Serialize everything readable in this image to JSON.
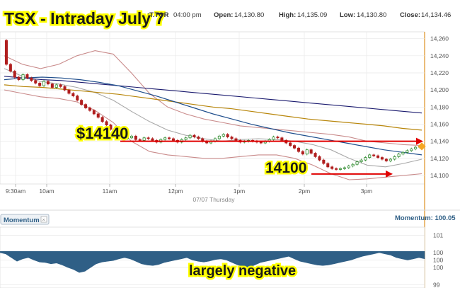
{
  "header": {
    "title": "TSX - Intraday July 7",
    "symbol": ";T.TOR",
    "time": "04:00 pm",
    "open_label": "Open:",
    "open_value": "14,130.80",
    "high_label": "High:",
    "high_value": "14,135.09",
    "low_label": "Low:",
    "low_value": "14,130.80",
    "close_label": "Close:",
    "close_value": "14,134.46"
  },
  "annotations": {
    "level_high": "$14140",
    "level_low": "14100",
    "momentum_note": "largely negative"
  },
  "colors": {
    "up": "#2e8b2e",
    "down": "#b01e1e",
    "annotation": "#e10000",
    "highlight": "#ffff00",
    "momentum_fill": "#2f5f86",
    "ma_navy": "#1a1a6e",
    "ma_olive": "#b8860b",
    "ma_blue": "#1f4e8c",
    "band": "#c98b8b",
    "grid": "#e8e8e8"
  },
  "chart_data": [
    {
      "type": "candlestick",
      "x_ticks": [
        "9:30am",
        "10am",
        "11am",
        "12pm",
        "1pm",
        "2pm",
        "3pm"
      ],
      "x_date_label": "07/07 Thursday",
      "y_ticks": [
        "14,100",
        "14,120",
        "14,140",
        "14,160",
        "14,180",
        "14,200",
        "14,220",
        "14,240",
        "14,260"
      ],
      "ylim": [
        14090,
        14268
      ],
      "reference_lines": [
        14140,
        14100
      ],
      "close": [
        14230,
        14222,
        14215,
        14212,
        14218,
        14214,
        14211,
        14208,
        14205,
        14210,
        14207,
        14203,
        14206,
        14204,
        14200,
        14196,
        14193,
        14188,
        14183,
        14179,
        14176,
        14172,
        14168,
        14163,
        14159,
        14154,
        14150,
        14146,
        14143,
        14144,
        14146,
        14142,
        14141,
        14144,
        14143,
        14141,
        14139,
        14142,
        14144,
        14143,
        14141,
        14139,
        14142,
        14144,
        14147,
        14145,
        14143,
        14140,
        14138,
        14140,
        14143,
        14146,
        14148,
        14145,
        14143,
        14141,
        14139,
        14140,
        14141,
        14140,
        14139,
        14138,
        14140,
        14142,
        14145,
        14144,
        14141,
        14138,
        14135,
        14132,
        14128,
        14125,
        14130,
        14126,
        14122,
        14118,
        14114,
        14110,
        14108,
        14107,
        14108,
        14109,
        14111,
        14113,
        14116,
        14118,
        14121,
        14124,
        14123,
        14121,
        14119,
        14117,
        14119,
        14122,
        14125,
        14127,
        14129,
        14131,
        14133,
        14134
      ],
      "open": [
        14258,
        14230,
        14222,
        14215,
        14212,
        14218,
        14214,
        14211,
        14208,
        14205,
        14210,
        14207,
        14203,
        14206,
        14204,
        14200,
        14196,
        14193,
        14188,
        14183,
        14179,
        14176,
        14172,
        14168,
        14163,
        14159,
        14154,
        14150,
        14146,
        14143,
        14144,
        14146,
        14142,
        14141,
        14144,
        14143,
        14141,
        14139,
        14142,
        14144,
        14143,
        14141,
        14139,
        14142,
        14144,
        14147,
        14145,
        14143,
        14140,
        14138,
        14140,
        14143,
        14146,
        14148,
        14145,
        14143,
        14141,
        14139,
        14140,
        14141,
        14140,
        14139,
        14138,
        14140,
        14142,
        14145,
        14144,
        14141,
        14138,
        14135,
        14132,
        14128,
        14125,
        14130,
        14126,
        14122,
        14118,
        14114,
        14110,
        14108,
        14107,
        14108,
        14109,
        14111,
        14113,
        14116,
        14118,
        14121,
        14124,
        14123,
        14121,
        14119,
        14117,
        14119,
        14122,
        14125,
        14127,
        14129,
        14131,
        14133
      ],
      "ma_navy": [
        14216,
        14214,
        14212,
        14211,
        14209,
        14207,
        14205,
        14203,
        14201,
        14199,
        14197,
        14195,
        14193,
        14191,
        14189,
        14187,
        14185,
        14183,
        14181,
        14179,
        14177,
        14175,
        14173
      ],
      "ma_olive": [
        14206,
        14204,
        14203,
        14201,
        14199,
        14197,
        14195,
        14192,
        14189,
        14186,
        14183,
        14180,
        14178,
        14175,
        14172,
        14169,
        14166,
        14164,
        14162,
        14160,
        14158,
        14155,
        14153
      ],
      "ma_blue": [
        14212,
        14214,
        14215,
        14214,
        14212,
        14209,
        14205,
        14199,
        14193,
        14186,
        14179,
        14172,
        14166,
        14160,
        14155,
        14150,
        14146,
        14142,
        14138,
        14134,
        14130,
        14127,
        14124
      ],
      "ma_gray": [
        14225,
        14216,
        14210,
        14207,
        14203,
        14197,
        14188,
        14175,
        14163,
        14153,
        14147,
        14143,
        14140,
        14142,
        14143,
        14142,
        14140,
        14136,
        14130,
        14120,
        14112,
        14110,
        14114,
        14119
      ],
      "band_upper": [
        14240,
        14230,
        14225,
        14230,
        14240,
        14246,
        14242,
        14220,
        14196,
        14180,
        14172,
        14166,
        14162,
        14158,
        14156,
        14154,
        14152,
        14150,
        14148,
        14145,
        14140,
        14138,
        14136,
        14135
      ],
      "band_lower": [
        14200,
        14196,
        14192,
        14190,
        14186,
        14176,
        14162,
        14140,
        14128,
        14124,
        14122,
        14120,
        14120,
        14122,
        14124,
        14124,
        14120,
        14112,
        14102,
        14095,
        14096,
        14098,
        14100,
        14102
      ]
    },
    {
      "type": "area",
      "title": "Momentum",
      "value_label": "Momentum: 100.05",
      "y_ticks": [
        "101",
        "100",
        "100",
        "100",
        "99"
      ],
      "ylim": [
        98.9,
        101.3
      ],
      "values": [
        100.3,
        100.25,
        100.1,
        99.95,
        100.05,
        100.1,
        100.0,
        99.92,
        99.9,
        99.85,
        99.88,
        99.8,
        99.7,
        99.62,
        99.5,
        99.55,
        99.7,
        99.85,
        99.92,
        99.95,
        99.98,
        100.05,
        100.1,
        100.05,
        99.95,
        99.85,
        99.8,
        99.78,
        99.82,
        99.9,
        99.95,
        100.0,
        100.05,
        100.1,
        100.0,
        99.95,
        99.92,
        99.96,
        100.02,
        100.05,
        100.0,
        99.9,
        99.8,
        99.75,
        99.7,
        99.8,
        99.9,
        99.95,
        100.0,
        100.05,
        100.1,
        100.15,
        100.05,
        99.95,
        99.9,
        99.85,
        99.8,
        99.78,
        99.8,
        99.85,
        99.9,
        99.95,
        100.0,
        100.08,
        100.15,
        100.2,
        100.25,
        100.3,
        100.25,
        100.2,
        100.1,
        100.05,
        100.0,
        100.05,
        100.1,
        100.05
      ]
    }
  ]
}
